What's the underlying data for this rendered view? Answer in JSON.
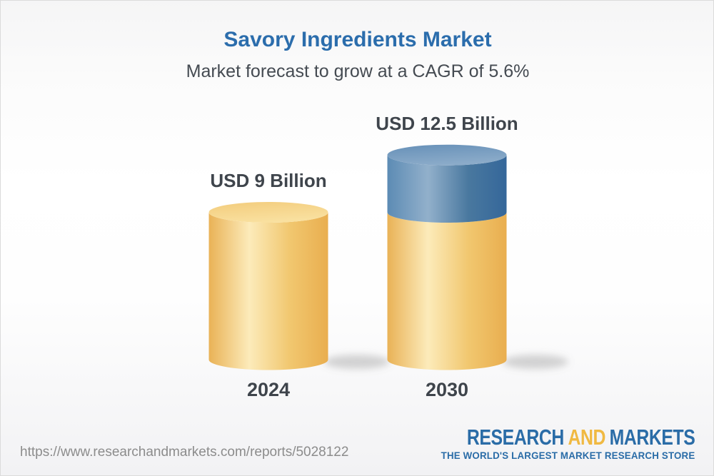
{
  "chart_data": {
    "type": "bar",
    "subtype": "3d-cylinder-pictograph",
    "title": "Savory Ingredients Market",
    "subtitle": "Market forecast to grow at a CAGR of 5.6%",
    "cagr_percent": 5.6,
    "unit": "USD Billion",
    "categories": [
      "2024",
      "2030"
    ],
    "values": [
      9,
      12.5
    ],
    "value_labels": [
      "USD 9 Billion",
      "USD 12.5 Billion"
    ],
    "segments_note": "2030 cylinder shows the 9 billion base in gold and the 3.5 billion incremental growth as a blue top segment",
    "ylim": [
      0,
      12.5
    ],
    "grid": false,
    "legend": false,
    "colors": {
      "base_gold": "#F2C46A",
      "growth_blue": "#4A7AA6",
      "label_text": "#3F454C"
    }
  },
  "header": {
    "title_color": "#2B6DAC",
    "subtitle_color": "#454B52"
  },
  "footer": {
    "url": "https://www.researchandmarkets.com/reports/5028122",
    "url_color": "#8C8C8C",
    "logo": {
      "research": "RESEARCH",
      "and": "AND",
      "markets": "MARKETS",
      "tagline": "THE WORLD'S LARGEST MARKET RESEARCH STORE",
      "blue": "#2A6CA7",
      "gold": "#F0B942"
    }
  }
}
